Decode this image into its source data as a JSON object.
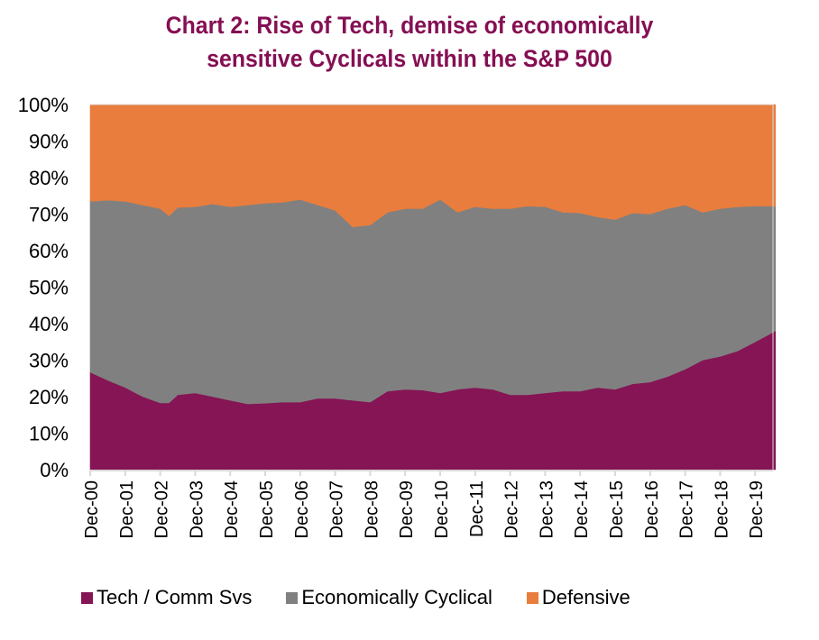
{
  "chart_data": {
    "type": "area",
    "stacked": true,
    "percent_stacked": true,
    "title": "Chart 2: Rise of Tech, demise of economically sensitive Cyclicals within the S&P 500",
    "title_lines": [
      "Chart 2: Rise of Tech, demise of economically",
      "sensitive Cyclicals within the S&P 500"
    ],
    "xlabel": "",
    "ylabel": "",
    "ylim": [
      0,
      100
    ],
    "y_ticks": [
      "0%",
      "10%",
      "20%",
      "30%",
      "40%",
      "50%",
      "60%",
      "70%",
      "80%",
      "90%",
      "100%"
    ],
    "x_tick_labels": [
      "Dec-00",
      "Dec-01",
      "Dec-02",
      "Dec-03",
      "Dec-04",
      "Dec-05",
      "Dec-06",
      "Dec-07",
      "Dec-08",
      "Dec-09",
      "Dec-10",
      "Dec-11",
      "Dec-12",
      "Dec-13",
      "Dec-14",
      "Dec-15",
      "Dec-16",
      "Dec-17",
      "Dec-18",
      "Dec-19"
    ],
    "x_range_years": [
      2000.92,
      2020.5
    ],
    "x": [
      2000.92,
      2001.42,
      2001.92,
      2002.42,
      2002.92,
      2003.17,
      2003.42,
      2003.92,
      2004.42,
      2004.92,
      2005.42,
      2005.92,
      2006.42,
      2006.92,
      2007.42,
      2007.92,
      2008.42,
      2008.92,
      2009.42,
      2009.92,
      2010.42,
      2010.92,
      2011.42,
      2011.92,
      2012.42,
      2012.92,
      2013.42,
      2013.92,
      2014.42,
      2014.92,
      2015.42,
      2015.92,
      2016.42,
      2016.92,
      2017.42,
      2017.92,
      2018.42,
      2018.92,
      2019.42,
      2019.92,
      2020.5
    ],
    "series": [
      {
        "name": "Tech / Comm Svs",
        "color": "#851554",
        "values": [
          26.7,
          24.5,
          22.5,
          20.0,
          18.3,
          18.3,
          20.5,
          21.0,
          20.0,
          19.0,
          18.0,
          18.2,
          18.5,
          18.5,
          19.5,
          19.5,
          19.0,
          18.5,
          21.5,
          22.0,
          21.8,
          21.0,
          22.0,
          22.5,
          22.0,
          20.5,
          20.5,
          21.0,
          21.5,
          21.5,
          22.5,
          22.0,
          23.5,
          24.0,
          25.5,
          27.5,
          30.0,
          31.0,
          32.5,
          35.0,
          38.0
        ]
      },
      {
        "name": "Economically Cyclical",
        "color": "#808080",
        "values": [
          46.8,
          49.3,
          51.0,
          52.5,
          53.2,
          51.2,
          51.3,
          51.0,
          52.8,
          53.0,
          54.5,
          54.8,
          54.7,
          55.5,
          53.0,
          51.5,
          47.5,
          48.5,
          49.0,
          49.5,
          49.7,
          53.0,
          48.5,
          49.5,
          49.5,
          51.0,
          51.7,
          51.0,
          49.0,
          48.8,
          46.7,
          46.5,
          46.8,
          46.0,
          46.0,
          45.0,
          40.5,
          40.5,
          39.5,
          37.2,
          34.2
        ]
      },
      {
        "name": "Defensive",
        "color": "#e97d3d",
        "values": [
          26.5,
          26.2,
          26.5,
          27.5,
          28.5,
          30.5,
          28.2,
          28.0,
          27.2,
          28.0,
          27.5,
          27.0,
          26.8,
          26.0,
          27.5,
          29.0,
          33.5,
          33.0,
          29.5,
          28.5,
          28.5,
          26.0,
          29.5,
          28.0,
          28.5,
          28.5,
          27.8,
          28.0,
          29.5,
          29.7,
          30.8,
          31.5,
          29.7,
          30.0,
          28.5,
          27.5,
          29.5,
          28.5,
          28.0,
          27.8,
          27.8
        ]
      }
    ],
    "legend": {
      "position": "bottom",
      "items": [
        {
          "label": "Tech / Comm Svs",
          "color": "#851554"
        },
        {
          "label": "Economically Cyclical",
          "color": "#808080"
        },
        {
          "label": "Defensive",
          "color": "#e97d3d"
        }
      ]
    },
    "grid": false
  }
}
